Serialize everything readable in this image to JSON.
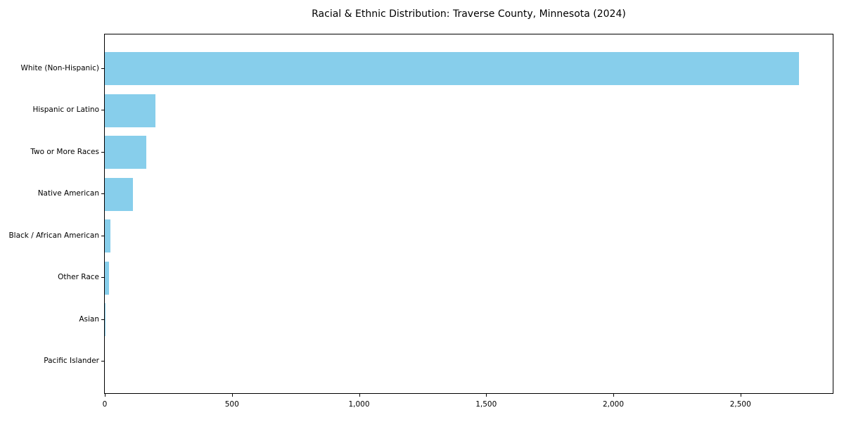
{
  "chart_data": {
    "type": "bar",
    "orientation": "horizontal",
    "title": "Racial & Ethnic Distribution: Traverse County, Minnesota (2024)",
    "categories": [
      "White (Non-Hispanic)",
      "Hispanic or Latino",
      "Two or More Races",
      "Native American",
      "Black / African American",
      "Other Race",
      "Asian",
      "Pacific Islander"
    ],
    "values": [
      2730,
      198,
      162,
      112,
      22,
      17,
      4,
      0
    ],
    "xlabel": "",
    "ylabel": "",
    "xlim": [
      0,
      2863
    ],
    "xticks": {
      "values": [
        0,
        500,
        1000,
        1500,
        2000,
        2500
      ],
      "labels": [
        "0",
        "500",
        "1,000",
        "1,500",
        "2,000",
        "2,500"
      ]
    },
    "grid": false,
    "legend": false,
    "bar_color": "#87CEEB"
  },
  "colors": {
    "bar": "#87CEEB",
    "axis": "#000000",
    "text": "#000000",
    "background": "#ffffff"
  }
}
